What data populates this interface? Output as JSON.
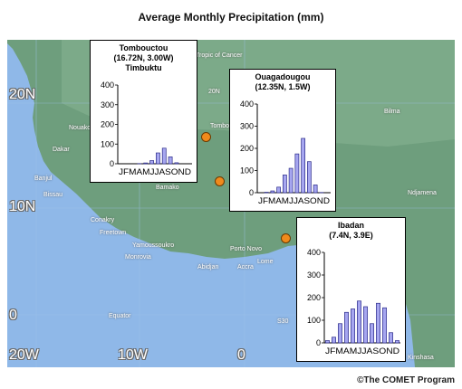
{
  "title": "Average Monthly Precipitation (mm)",
  "credit": "©The COMET Program",
  "map": {
    "colors": {
      "ocean": "#8fb8e8",
      "land": "#6e9e7d",
      "land_light": "#8fb898",
      "dot": "#f08a1c"
    },
    "lat_labels": [
      "20N",
      "10N",
      "0"
    ],
    "lon_labels": [
      "20W",
      "10W",
      "0"
    ],
    "cities": [
      {
        "name": "Tropic of Cancer"
      },
      {
        "name": "20N"
      },
      {
        "name": "Nouakchott"
      },
      {
        "name": "Dakar"
      },
      {
        "name": "Banjul"
      },
      {
        "name": "Bissau"
      },
      {
        "name": "Conakry"
      },
      {
        "name": "Freetown"
      },
      {
        "name": "Yamoussoukro"
      },
      {
        "name": "Monrovia"
      },
      {
        "name": "Abidjan"
      },
      {
        "name": "Porto Novo"
      },
      {
        "name": "Lome"
      },
      {
        "name": "Accra"
      },
      {
        "name": "Bamako"
      },
      {
        "name": "Tombouctou"
      },
      {
        "name": "Bilma"
      },
      {
        "name": "Ndjamena"
      },
      {
        "name": "Kinshasa"
      },
      {
        "name": "Equator"
      },
      {
        "name": "S30"
      }
    ]
  },
  "chart_data": [
    {
      "type": "bar",
      "title": "Tombouctou\n(16.72N, 3.00W)\nTimbuktu",
      "categories": [
        "J",
        "F",
        "M",
        "A",
        "M",
        "J",
        "J",
        "A",
        "S",
        "O",
        "N",
        "D"
      ],
      "values": [
        0,
        0,
        0,
        1,
        4,
        16,
        55,
        79,
        35,
        5,
        0,
        0
      ],
      "ylim": [
        0,
        400
      ],
      "yticks": [
        0,
        100,
        200,
        300,
        400
      ]
    },
    {
      "type": "bar",
      "title": "Ouagadougou\n(12.35N, 1.5W)",
      "categories": [
        "J",
        "F",
        "M",
        "A",
        "M",
        "J",
        "J",
        "A",
        "S",
        "O",
        "N",
        "D"
      ],
      "values": [
        0,
        2,
        8,
        25,
        80,
        110,
        175,
        245,
        140,
        35,
        1,
        0
      ],
      "ylim": [
        0,
        400
      ],
      "yticks": [
        0,
        100,
        200,
        300,
        400
      ]
    },
    {
      "type": "bar",
      "title": "Ibadan\n(7.4N, 3.9E)",
      "categories": [
        "J",
        "F",
        "M",
        "A",
        "M",
        "J",
        "J",
        "A",
        "S",
        "O",
        "N",
        "D"
      ],
      "values": [
        10,
        25,
        85,
        135,
        150,
        185,
        160,
        85,
        175,
        155,
        45,
        10
      ],
      "ylim": [
        0,
        400
      ],
      "yticks": [
        0,
        100,
        200,
        300,
        400
      ]
    }
  ]
}
